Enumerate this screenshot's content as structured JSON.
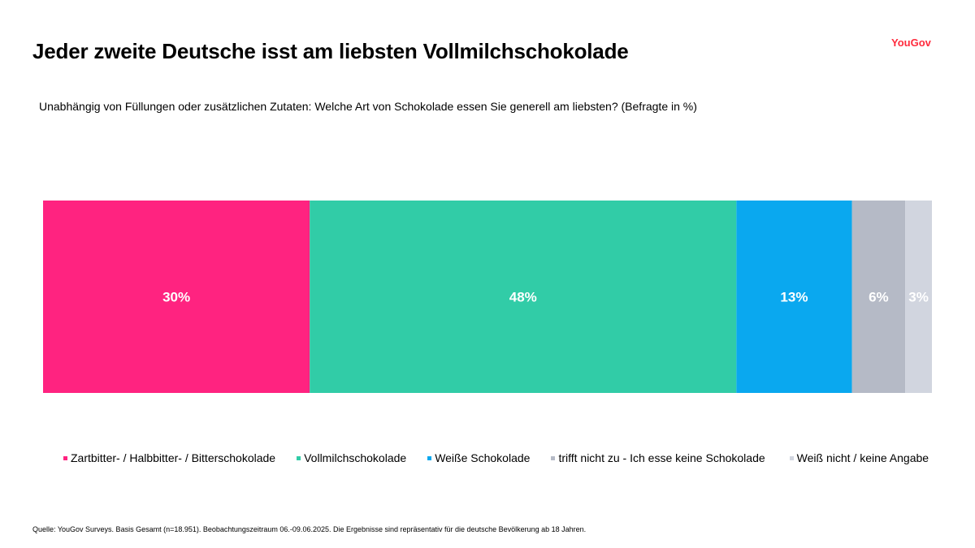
{
  "header": {
    "title": "Jeder zweite Deutsche isst am liebsten Vollmilchschokolade",
    "logo": "YouGov"
  },
  "question": "Unabhängig von Füllungen oder zusätzlichen Zutaten: Welche Art von Schokolade essen Sie generell am liebsten? (Befragte in %)",
  "footer": {
    "source": "Quelle: YouGov Surveys. Basis Gesamt (n=18.951). Beobachtungszeitraum 06.-09.06.2025. Die Ergebnisse sind repräsentativ für die deutsche Bevölkerung ab 18 Jahren."
  },
  "colors": {
    "logo": "#ff2b3d"
  },
  "chart_data": {
    "type": "bar",
    "orientation": "horizontal-stacked-100",
    "unit": "%",
    "legend_position": "bottom",
    "grid": false,
    "series": [
      {
        "name": "Zartbitter- / Halbbitter- / Bitterschokolade",
        "value": 30,
        "label": "30%",
        "color": "#ff2380"
      },
      {
        "name": "Vollmilchschokolade",
        "value": 48,
        "label": "48%",
        "color": "#31cca7"
      },
      {
        "name": "Weiße Schokolade",
        "value": 13,
        "label": "13%",
        "color": "#0aa8ef"
      },
      {
        "name": "trifft nicht zu - Ich esse keine Schokolade",
        "value": 6,
        "label": "6%",
        "color": "#b5bac6"
      },
      {
        "name": "Weiß nicht / keine Angabe",
        "value": 3,
        "label": "3%",
        "color": "#d1d5df"
      }
    ]
  }
}
